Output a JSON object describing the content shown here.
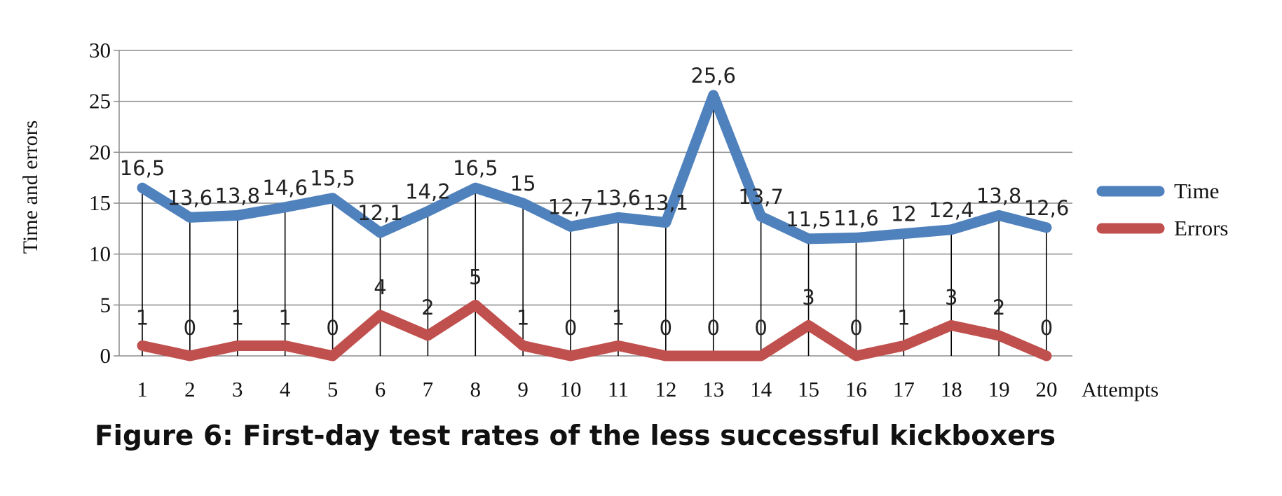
{
  "chart_data": {
    "type": "line",
    "title": "",
    "xlabel": "Attempts",
    "ylabel": "Time and errors",
    "ylim": [
      0,
      30
    ],
    "yticks": [
      0,
      5,
      10,
      15,
      20,
      25,
      30
    ],
    "grid": true,
    "legend_position": "right",
    "categories": [
      "1",
      "2",
      "3",
      "4",
      "5",
      "6",
      "7",
      "8",
      "9",
      "10",
      "11",
      "12",
      "13",
      "14",
      "15",
      "16",
      "17",
      "18",
      "19",
      "20"
    ],
    "series": [
      {
        "name": "Time",
        "color": "#4f81bd",
        "values": [
          16.5,
          13.6,
          13.8,
          14.6,
          15.5,
          12.1,
          14.2,
          16.5,
          15,
          12.7,
          13.6,
          13.1,
          25.6,
          13.7,
          11.5,
          11.6,
          12,
          12.4,
          13.8,
          12.6
        ],
        "labels": [
          "16,5",
          "13,6",
          "13,8",
          "14,6",
          "15,5",
          "12,1",
          "14,2",
          "16,5",
          "15",
          "12,7",
          "13,6",
          "13,1",
          "25,6",
          "13,7",
          "11,5",
          "11,6",
          "12",
          "12,4",
          "13,8",
          "12,6"
        ]
      },
      {
        "name": "Errors",
        "color": "#c0504d",
        "values": [
          1,
          0,
          1,
          1,
          0,
          4,
          2,
          5,
          1,
          0,
          1,
          0,
          0,
          0,
          3,
          0,
          1,
          3,
          2,
          0
        ],
        "labels": [
          "1",
          "0",
          "1",
          "1",
          "0",
          "4",
          "2",
          "5",
          "1",
          "0",
          "1",
          "0",
          "0",
          "0",
          "3",
          "0",
          "1",
          "3",
          "2",
          "0"
        ]
      }
    ]
  },
  "caption": "Figure 6: First-day test rates of the less successful kickboxers"
}
